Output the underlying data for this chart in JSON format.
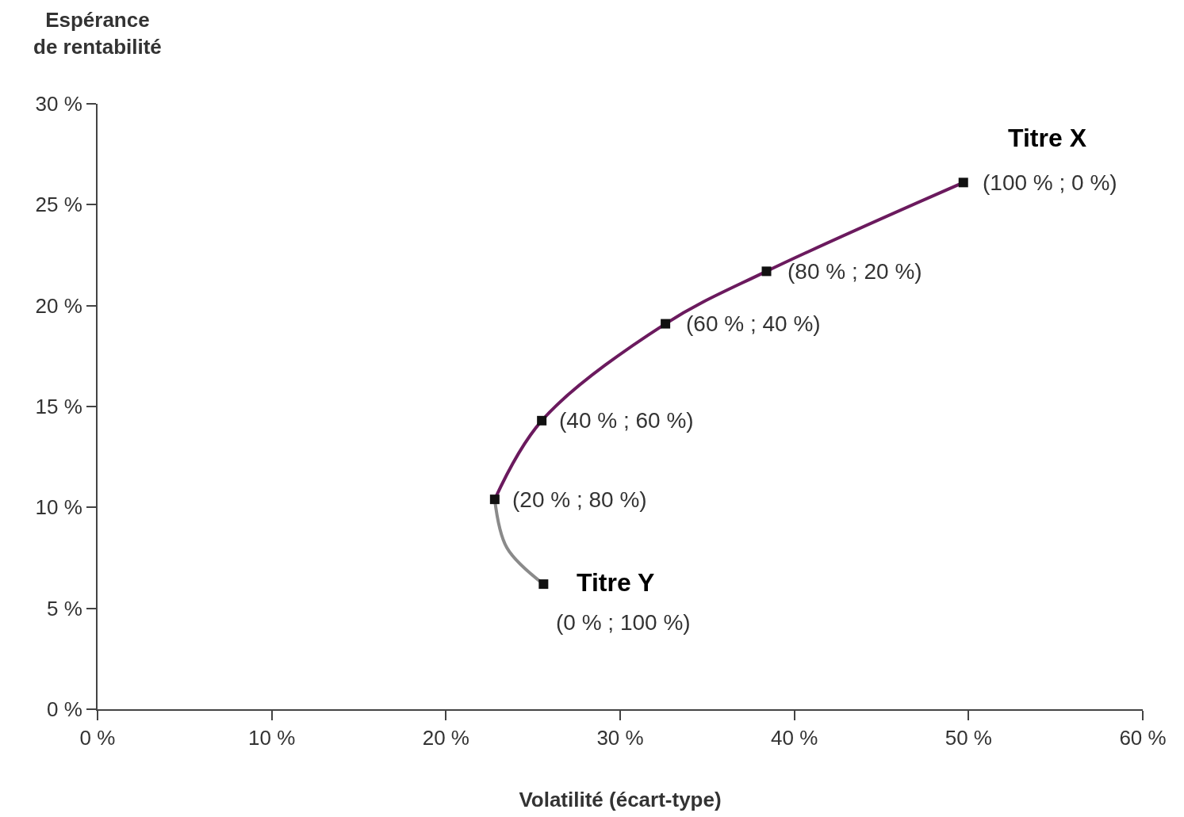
{
  "chart_data": {
    "type": "line",
    "xlabel": "Volatilité (écart-type)",
    "ylabel": "Espérance\nde rentabilité",
    "xlim": [
      0,
      60
    ],
    "ylim": [
      0,
      30
    ],
    "xticks": [
      {
        "value": 0,
        "label": "0 %"
      },
      {
        "value": 10,
        "label": "10 %"
      },
      {
        "value": 20,
        "label": "20 %"
      },
      {
        "value": 30,
        "label": "30 %"
      },
      {
        "value": 40,
        "label": "40 %"
      },
      {
        "value": 50,
        "label": "50 %"
      },
      {
        "value": 60,
        "label": "60 %"
      }
    ],
    "yticks": [
      {
        "value": 0,
        "label": "0 %"
      },
      {
        "value": 5,
        "label": "5 %"
      },
      {
        "value": 10,
        "label": "10 %"
      },
      {
        "value": 15,
        "label": "15 %"
      },
      {
        "value": 20,
        "label": "20 %"
      },
      {
        "value": 25,
        "label": "25 %"
      },
      {
        "value": 30,
        "label": "30 %"
      }
    ],
    "series": [
      {
        "color": "#8a8a8a",
        "x": [
          25.6,
          23.5,
          22.8
        ],
        "values": [
          6.2,
          8.0,
          10.4
        ],
        "marker": "none"
      },
      {
        "color": "#6b1a5e",
        "x": [
          22.8,
          25.5,
          32.6,
          38.4,
          49.7
        ],
        "values": [
          10.4,
          14.3,
          19.1,
          21.7,
          26.1
        ],
        "marker": "none"
      },
      {
        "type": "scatter",
        "color": "#111111",
        "x": [
          49.7,
          38.4,
          32.6,
          25.5,
          22.8,
          25.6
        ],
        "values": [
          26.1,
          21.7,
          19.1,
          14.3,
          10.4,
          6.2
        ],
        "marker": "square"
      }
    ],
    "annotations": [
      {
        "text": "Titre X",
        "x": 49.7,
        "y": 26.1
      },
      {
        "text": "(100 % ; 0 %)",
        "x": 49.7,
        "y": 26.1
      },
      {
        "text": "(80 % ; 20 %)",
        "x": 38.4,
        "y": 21.7
      },
      {
        "text": "(60 % ; 40 %)",
        "x": 32.6,
        "y": 19.1
      },
      {
        "text": "(40 % ; 60 %)",
        "x": 25.5,
        "y": 14.3
      },
      {
        "text": "(20 % ; 80 %)",
        "x": 22.8,
        "y": 10.4
      },
      {
        "text": "Titre Y",
        "x": 25.6,
        "y": 6.2
      },
      {
        "text": "(0 % ; 100 %)",
        "x": 25.6,
        "y": 6.2
      }
    ]
  }
}
